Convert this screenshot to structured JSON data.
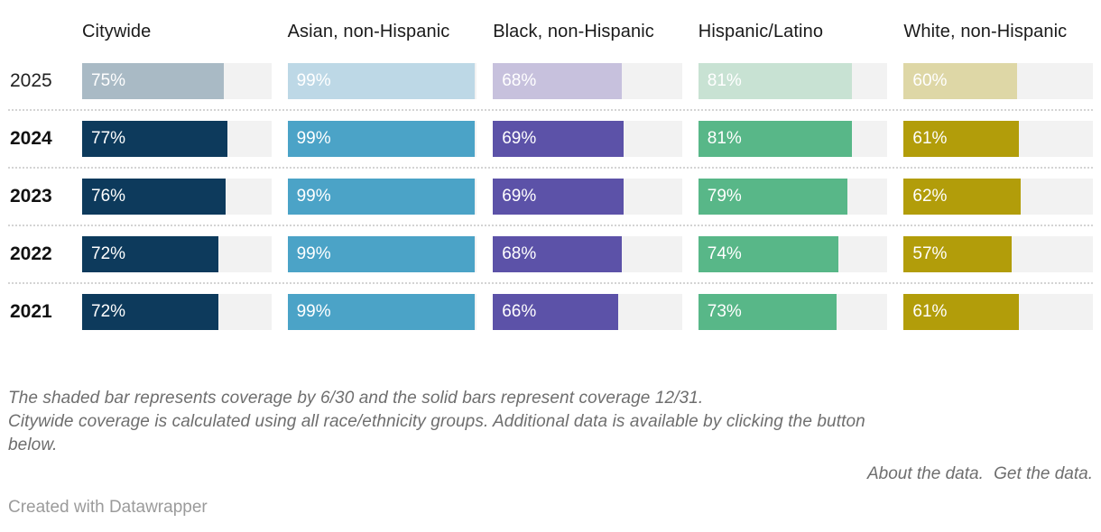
{
  "columns": [
    {
      "label": "Citywide",
      "solid": "#0d3a5c",
      "light": "#a9bac5"
    },
    {
      "label": "Asian, non-Hispanic",
      "solid": "#4ba3c7",
      "light": "#bdd8e6"
    },
    {
      "label": "Black, non-Hispanic",
      "solid": "#5c52a8",
      "light": "#c7c1dd"
    },
    {
      "label": "Hispanic/Latino",
      "solid": "#58b788",
      "light": "#c8e2d3"
    },
    {
      "label": "White, non-Hispanic",
      "solid": "#b29d0a",
      "light": "#ded7a6"
    }
  ],
  "rows": [
    {
      "year": "2025",
      "shaded": true,
      "cells": [
        {
          "value": 75,
          "label": "75%"
        },
        {
          "value": 99,
          "label": "99%"
        },
        {
          "value": 68,
          "label": "68%"
        },
        {
          "value": 81,
          "label": "81%"
        },
        {
          "value": 60,
          "label": "60%"
        }
      ]
    },
    {
      "year": "2024",
      "shaded": false,
      "cells": [
        {
          "value": 77,
          "label": "77%"
        },
        {
          "value": 99,
          "label": "99%"
        },
        {
          "value": 69,
          "label": "69%"
        },
        {
          "value": 81,
          "label": "81%"
        },
        {
          "value": 61,
          "label": "61%"
        }
      ]
    },
    {
      "year": "2023",
      "shaded": false,
      "cells": [
        {
          "value": 76,
          "label": "76%"
        },
        {
          "value": 99,
          "label": "99%"
        },
        {
          "value": 69,
          "label": "69%"
        },
        {
          "value": 79,
          "label": "79%"
        },
        {
          "value": 62,
          "label": "62%"
        }
      ]
    },
    {
      "year": "2022",
      "shaded": false,
      "cells": [
        {
          "value": 72,
          "label": "72%"
        },
        {
          "value": 99,
          "label": "99%"
        },
        {
          "value": 68,
          "label": "68%"
        },
        {
          "value": 74,
          "label": "74%"
        },
        {
          "value": 57,
          "label": "57%"
        }
      ]
    },
    {
      "year": "2021",
      "shaded": false,
      "cells": [
        {
          "value": 72,
          "label": "72%"
        },
        {
          "value": 99,
          "label": "99%"
        },
        {
          "value": 66,
          "label": "66%"
        },
        {
          "value": 73,
          "label": "73%"
        },
        {
          "value": 61,
          "label": "61%"
        }
      ]
    }
  ],
  "notes_lines": [
    "The shaded bar represents coverage by 6/30 and the solid bars represent coverage 12/31.",
    "Citywide coverage is calculated using all race/ethnicity groups. Additional data is available by clicking the button",
    "below."
  ],
  "links": {
    "about": "About the data.",
    "get": "Get the data."
  },
  "byline": "Created with Datawrapper",
  "track_color": "#f2f2f2",
  "chart_data": {
    "type": "bar",
    "orientation": "horizontal",
    "unit": "%",
    "xlim": [
      0,
      100
    ],
    "categories": [
      "2025",
      "2024",
      "2023",
      "2022",
      "2021"
    ],
    "series": [
      {
        "name": "Citywide",
        "values": [
          75,
          77,
          76,
          72,
          72
        ]
      },
      {
        "name": "Asian, non-Hispanic",
        "values": [
          99,
          99,
          99,
          99,
          99
        ]
      },
      {
        "name": "Black, non-Hispanic",
        "values": [
          68,
          69,
          69,
          68,
          66
        ]
      },
      {
        "name": "Hispanic/Latino",
        "values": [
          81,
          81,
          79,
          74,
          73
        ]
      },
      {
        "name": "White, non-Hispanic",
        "values": [
          60,
          61,
          62,
          57,
          61
        ]
      }
    ],
    "annotations": "2025 row rendered in shaded (light) colors = coverage by 6/30; rows 2021-2024 rendered solid = coverage by 12/31",
    "grid": false,
    "legend_position": "column-headers-top"
  }
}
